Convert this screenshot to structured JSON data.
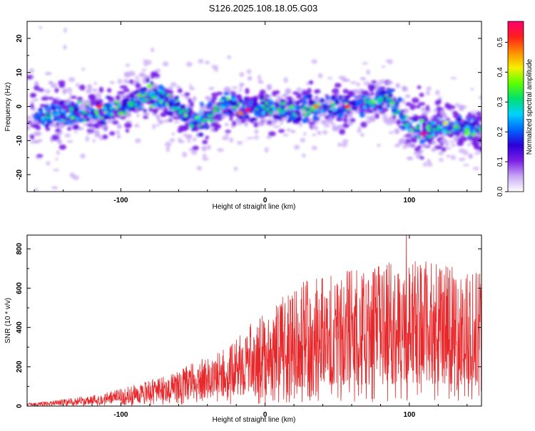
{
  "title": "S126.2025.108.18.05.G03",
  "colors": {
    "snr_line": "#e8272a",
    "background": "#ffffff",
    "axis": "#000000"
  },
  "chart_data": [
    {
      "type": "heatmap",
      "xlabel": "Height of straight line (km)",
      "ylabel": "Frequency (Hz)",
      "xlim": [
        -165,
        150
      ],
      "ylim": [
        -25,
        25
      ],
      "xticks": [
        "-100",
        "0",
        "100"
      ],
      "xtick_values": [
        -100,
        0,
        100
      ],
      "yticks": [
        "20",
        "10",
        "0",
        "-10",
        "-20"
      ],
      "ytick_values": [
        20,
        10,
        0,
        -10,
        -20
      ],
      "colorbar": {
        "label": "Normalized spectral amplitude",
        "range": [
          0,
          0.57
        ],
        "ticks": [
          "0.5",
          "0.4",
          "0.3",
          "0.2",
          "0.1",
          "0.0"
        ],
        "tick_values": [
          0.5,
          0.4,
          0.3,
          0.2,
          0.1,
          0.0
        ],
        "colormap": [
          "#ffffff",
          "#c7a6f5",
          "#7a1fe6",
          "#2a00d8",
          "#0066ff",
          "#00d2ff",
          "#00e070",
          "#5cff00",
          "#f5f000",
          "#ff8c00",
          "#ff1e1e",
          "#ff006e"
        ]
      },
      "ridge": [
        {
          "x": -160,
          "f": -3
        },
        {
          "x": -140,
          "f": -2
        },
        {
          "x": -120,
          "f": -2
        },
        {
          "x": -100,
          "f": 0
        },
        {
          "x": -90,
          "f": 1
        },
        {
          "x": -80,
          "f": 3
        },
        {
          "x": -70,
          "f": 2
        },
        {
          "x": -60,
          "f": -1
        },
        {
          "x": -50,
          "f": -4
        },
        {
          "x": -40,
          "f": -3
        },
        {
          "x": -30,
          "f": 0
        },
        {
          "x": -20,
          "f": 0
        },
        {
          "x": -10,
          "f": 0
        },
        {
          "x": 0,
          "f": 0
        },
        {
          "x": 20,
          "f": -1
        },
        {
          "x": 40,
          "f": 0
        },
        {
          "x": 55,
          "f": 0
        },
        {
          "x": 70,
          "f": 1
        },
        {
          "x": 85,
          "f": 3
        },
        {
          "x": 95,
          "f": -3
        },
        {
          "x": 105,
          "f": -7
        },
        {
          "x": 120,
          "f": -6
        },
        {
          "x": 135,
          "f": -6
        },
        {
          "x": 148,
          "f": -7
        }
      ],
      "peaks": [
        {
          "x": -115,
          "f": 0,
          "a": 0.52
        },
        {
          "x": -80,
          "f": 6,
          "a": 0.35
        },
        {
          "x": -12,
          "f": -1,
          "a": 0.57
        },
        {
          "x": -17,
          "f": -2,
          "a": 0.48
        },
        {
          "x": 35,
          "f": 0,
          "a": 0.45
        },
        {
          "x": 57,
          "f": 0,
          "a": 0.5
        },
        {
          "x": 110,
          "f": -8,
          "a": 0.55
        },
        {
          "x": 125,
          "f": -5,
          "a": 0.4
        },
        {
          "x": 140,
          "f": -7,
          "a": 0.35
        },
        {
          "x": -100,
          "f": -2,
          "a": 0.35
        },
        {
          "x": 10,
          "f": -1,
          "a": 0.3
        },
        {
          "x": 80,
          "f": 2,
          "a": 0.3
        }
      ]
    },
    {
      "type": "line",
      "xlabel": "Height of straight line (km)",
      "ylabel": "SNR (10 * v/v)",
      "xlim": [
        -165,
        150
      ],
      "ylim": [
        0,
        870
      ],
      "xticks": [
        "-100",
        "0",
        "100"
      ],
      "xtick_values": [
        -100,
        0,
        100
      ],
      "yticks": [
        "800",
        "600",
        "400",
        "200",
        "0"
      ],
      "ytick_values": [
        800,
        600,
        400,
        200,
        0
      ],
      "series": [
        {
          "envelope": [
            {
              "x": -165,
              "y": 15
            },
            {
              "x": -150,
              "y": 25
            },
            {
              "x": -130,
              "y": 45
            },
            {
              "x": -110,
              "y": 70
            },
            {
              "x": -90,
              "y": 110
            },
            {
              "x": -70,
              "y": 150
            },
            {
              "x": -50,
              "y": 220
            },
            {
              "x": -40,
              "y": 250
            },
            {
              "x": -25,
              "y": 300
            },
            {
              "x": -10,
              "y": 420
            },
            {
              "x": 0,
              "y": 470
            },
            {
              "x": 20,
              "y": 620
            },
            {
              "x": 40,
              "y": 680
            },
            {
              "x": 60,
              "y": 700
            },
            {
              "x": 80,
              "y": 720
            },
            {
              "x": 100,
              "y": 760
            },
            {
              "x": 120,
              "y": 720
            },
            {
              "x": 140,
              "y": 700
            },
            {
              "x": 150,
              "y": 680
            }
          ],
          "max_point": {
            "x": 98,
            "y": 870
          }
        }
      ]
    }
  ]
}
